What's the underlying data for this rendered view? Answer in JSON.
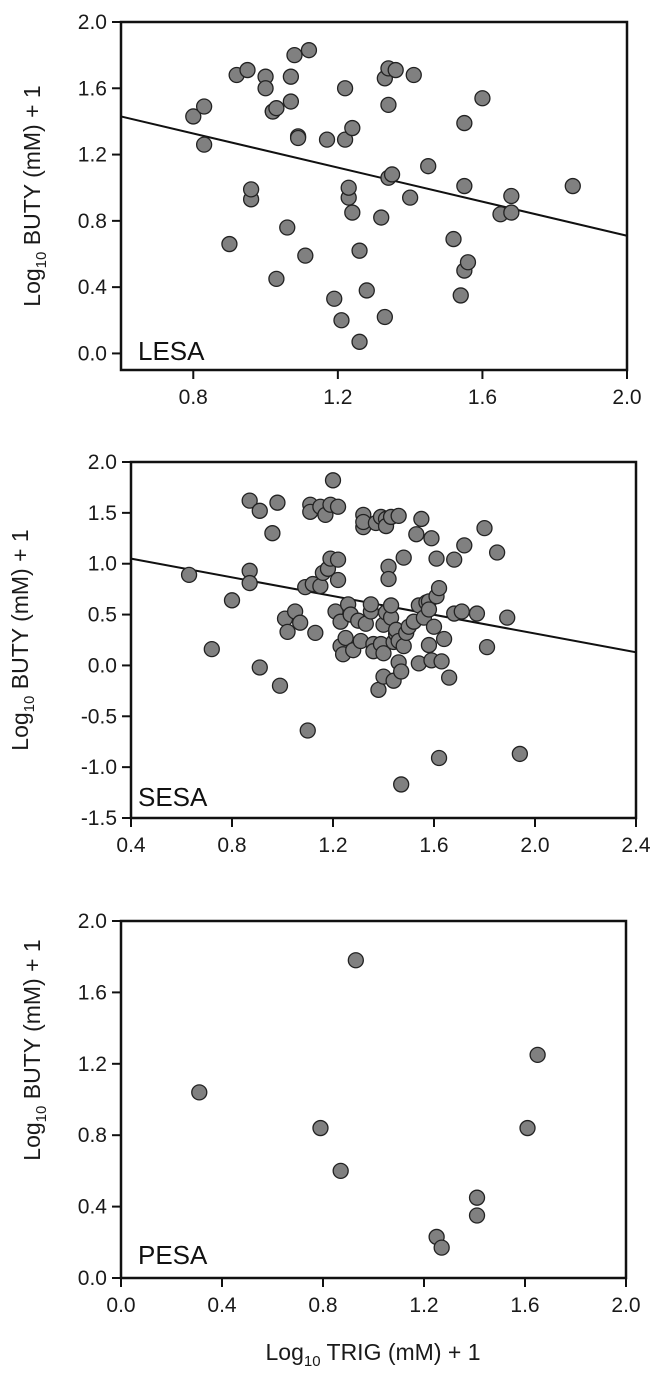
{
  "chart_data": [
    {
      "type": "scatter",
      "panel_label": "LESA",
      "ylabel": "Log10 BUTY (mM) + 1",
      "xlim": [
        0.6,
        2.0
      ],
      "ylim": [
        -0.1,
        2.0
      ],
      "xticks": [
        "0.8",
        "1.2",
        "1.6",
        "2.0"
      ],
      "yticks": [
        "0.0",
        "0.4",
        "0.8",
        "1.2",
        "1.6",
        "2.0"
      ],
      "trend_line": {
        "x": [
          0.6,
          2.0
        ],
        "y": [
          1.43,
          0.71
        ]
      },
      "points": [
        [
          0.8,
          1.43
        ],
        [
          0.83,
          1.49
        ],
        [
          0.83,
          1.26
        ],
        [
          0.9,
          0.66
        ],
        [
          0.92,
          1.68
        ],
        [
          0.95,
          1.71
        ],
        [
          0.96,
          0.93
        ],
        [
          0.96,
          0.99
        ],
        [
          1.0,
          1.67
        ],
        [
          1.0,
          1.6
        ],
        [
          1.02,
          1.46
        ],
        [
          1.02,
          1.46
        ],
        [
          1.03,
          1.48
        ],
        [
          1.03,
          0.45
        ],
        [
          1.06,
          0.76
        ],
        [
          1.07,
          1.52
        ],
        [
          1.07,
          1.67
        ],
        [
          1.08,
          1.8
        ],
        [
          1.09,
          1.31
        ],
        [
          1.09,
          1.3
        ],
        [
          1.11,
          0.59
        ],
        [
          1.12,
          1.83
        ],
        [
          1.17,
          1.29
        ],
        [
          1.19,
          0.33
        ],
        [
          1.21,
          0.2
        ],
        [
          1.22,
          1.29
        ],
        [
          1.22,
          1.6
        ],
        [
          1.23,
          0.94
        ],
        [
          1.23,
          1.0
        ],
        [
          1.24,
          0.85
        ],
        [
          1.24,
          1.36
        ],
        [
          1.26,
          0.07
        ],
        [
          1.26,
          0.62
        ],
        [
          1.28,
          0.38
        ],
        [
          1.32,
          0.82
        ],
        [
          1.33,
          0.22
        ],
        [
          1.33,
          1.66
        ],
        [
          1.34,
          1.5
        ],
        [
          1.34,
          1.06
        ],
        [
          1.34,
          1.72
        ],
        [
          1.35,
          1.08
        ],
        [
          1.36,
          1.71
        ],
        [
          1.4,
          0.94
        ],
        [
          1.41,
          1.68
        ],
        [
          1.45,
          1.13
        ],
        [
          1.52,
          0.69
        ],
        [
          1.54,
          0.35
        ],
        [
          1.55,
          0.5
        ],
        [
          1.55,
          1.39
        ],
        [
          1.55,
          1.01
        ],
        [
          1.56,
          0.55
        ],
        [
          1.6,
          1.54
        ],
        [
          1.65,
          0.84
        ],
        [
          1.68,
          0.85
        ],
        [
          1.68,
          0.95
        ],
        [
          1.85,
          1.01
        ]
      ]
    },
    {
      "type": "scatter",
      "panel_label": "SESA",
      "ylabel": "Log10 BUTY (mM) + 1",
      "xlim": [
        0.4,
        2.4
      ],
      "ylim": [
        -1.5,
        2.0
      ],
      "xticks": [
        "0.4",
        "0.8",
        "1.2",
        "1.6",
        "2.0",
        "2.4"
      ],
      "yticks": [
        "-1.5",
        "-1.0",
        "-0.5",
        "0.0",
        "0.5",
        "1.0",
        "1.5",
        "2.0"
      ],
      "trend_line": {
        "x": [
          0.4,
          2.4
        ],
        "y": [
          1.05,
          0.13
        ]
      },
      "points": [
        [
          0.63,
          0.89
        ],
        [
          0.72,
          0.16
        ],
        [
          0.8,
          0.64
        ],
        [
          0.87,
          0.93
        ],
        [
          0.87,
          0.81
        ],
        [
          0.87,
          1.62
        ],
        [
          0.91,
          1.52
        ],
        [
          0.91,
          -0.02
        ],
        [
          0.96,
          1.3
        ],
        [
          0.98,
          1.6
        ],
        [
          0.99,
          -0.2
        ],
        [
          1.01,
          0.46
        ],
        [
          1.02,
          0.33
        ],
        [
          1.05,
          0.53
        ],
        [
          1.07,
          0.42
        ],
        [
          1.09,
          0.77
        ],
        [
          1.1,
          -0.64
        ],
        [
          1.11,
          1.58
        ],
        [
          1.11,
          1.51
        ],
        [
          1.12,
          0.8
        ],
        [
          1.13,
          0.32
        ],
        [
          1.15,
          1.56
        ],
        [
          1.15,
          0.78
        ],
        [
          1.16,
          0.91
        ],
        [
          1.17,
          1.48
        ],
        [
          1.18,
          0.95
        ],
        [
          1.19,
          1.58
        ],
        [
          1.19,
          1.05
        ],
        [
          1.2,
          1.82
        ],
        [
          1.21,
          0.53
        ],
        [
          1.22,
          1.04
        ],
        [
          1.22,
          1.56
        ],
        [
          1.22,
          0.84
        ],
        [
          1.23,
          0.19
        ],
        [
          1.23,
          0.43
        ],
        [
          1.24,
          0.11
        ],
        [
          1.25,
          0.27
        ],
        [
          1.26,
          0.6
        ],
        [
          1.27,
          0.5
        ],
        [
          1.28,
          0.15
        ],
        [
          1.3,
          0.44
        ],
        [
          1.31,
          0.24
        ],
        [
          1.32,
          1.48
        ],
        [
          1.32,
          1.36
        ],
        [
          1.32,
          1.41
        ],
        [
          1.33,
          0.41
        ],
        [
          1.35,
          0.53
        ],
        [
          1.35,
          0.6
        ],
        [
          1.36,
          0.21
        ],
        [
          1.36,
          0.14
        ],
        [
          1.37,
          1.4
        ],
        [
          1.38,
          -0.24
        ],
        [
          1.39,
          1.46
        ],
        [
          1.39,
          0.21
        ],
        [
          1.4,
          -0.11
        ],
        [
          1.4,
          0.4
        ],
        [
          1.4,
          0.12
        ],
        [
          1.41,
          1.44
        ],
        [
          1.41,
          1.37
        ],
        [
          1.41,
          0.52
        ],
        [
          1.42,
          0.97
        ],
        [
          1.42,
          0.85
        ],
        [
          1.43,
          0.47
        ],
        [
          1.43,
          1.46
        ],
        [
          1.43,
          0.59
        ],
        [
          1.44,
          -0.15
        ],
        [
          1.44,
          0.23
        ],
        [
          1.45,
          0.31
        ],
        [
          1.45,
          0.35
        ],
        [
          1.46,
          1.47
        ],
        [
          1.46,
          0.24
        ],
        [
          1.46,
          0.03
        ],
        [
          1.47,
          -0.06
        ],
        [
          1.47,
          -1.17
        ],
        [
          1.48,
          1.06
        ],
        [
          1.48,
          0.19
        ],
        [
          1.49,
          0.32
        ],
        [
          1.5,
          0.38
        ],
        [
          1.52,
          0.43
        ],
        [
          1.53,
          1.29
        ],
        [
          1.54,
          0.59
        ],
        [
          1.54,
          0.02
        ],
        [
          1.55,
          1.44
        ],
        [
          1.56,
          0.47
        ],
        [
          1.57,
          0.62
        ],
        [
          1.58,
          0.63
        ],
        [
          1.58,
          0.55
        ],
        [
          1.58,
          0.2
        ],
        [
          1.59,
          1.25
        ],
        [
          1.59,
          0.05
        ],
        [
          1.6,
          0.38
        ],
        [
          1.61,
          0.68
        ],
        [
          1.61,
          1.05
        ],
        [
          1.62,
          0.76
        ],
        [
          1.62,
          -0.91
        ],
        [
          1.63,
          0.04
        ],
        [
          1.64,
          0.26
        ],
        [
          1.66,
          -0.12
        ],
        [
          1.68,
          0.51
        ],
        [
          1.68,
          1.04
        ],
        [
          1.71,
          0.53
        ],
        [
          1.72,
          1.18
        ],
        [
          1.77,
          0.51
        ],
        [
          1.8,
          1.35
        ],
        [
          1.81,
          0.18
        ],
        [
          1.85,
          1.11
        ],
        [
          1.89,
          0.47
        ],
        [
          1.94,
          -0.87
        ]
      ]
    },
    {
      "type": "scatter",
      "panel_label": "PESA",
      "ylabel": "Log10 BUTY (mM) + 1",
      "xlabel": "Log10 TRIG (mM) + 1",
      "xlim": [
        0.0,
        2.0
      ],
      "ylim": [
        0.0,
        2.0
      ],
      "xticks": [
        "0.0",
        "0.4",
        "0.8",
        "1.2",
        "1.6",
        "2.0"
      ],
      "yticks": [
        "0.0",
        "0.4",
        "0.8",
        "1.2",
        "1.6",
        "2.0"
      ],
      "points": [
        [
          0.31,
          1.04
        ],
        [
          0.79,
          0.84
        ],
        [
          0.87,
          0.6
        ],
        [
          0.93,
          1.78
        ],
        [
          1.25,
          0.23
        ],
        [
          1.27,
          0.17
        ],
        [
          1.41,
          0.35
        ],
        [
          1.41,
          0.45
        ],
        [
          1.61,
          0.84
        ],
        [
          1.65,
          1.25
        ]
      ]
    }
  ]
}
